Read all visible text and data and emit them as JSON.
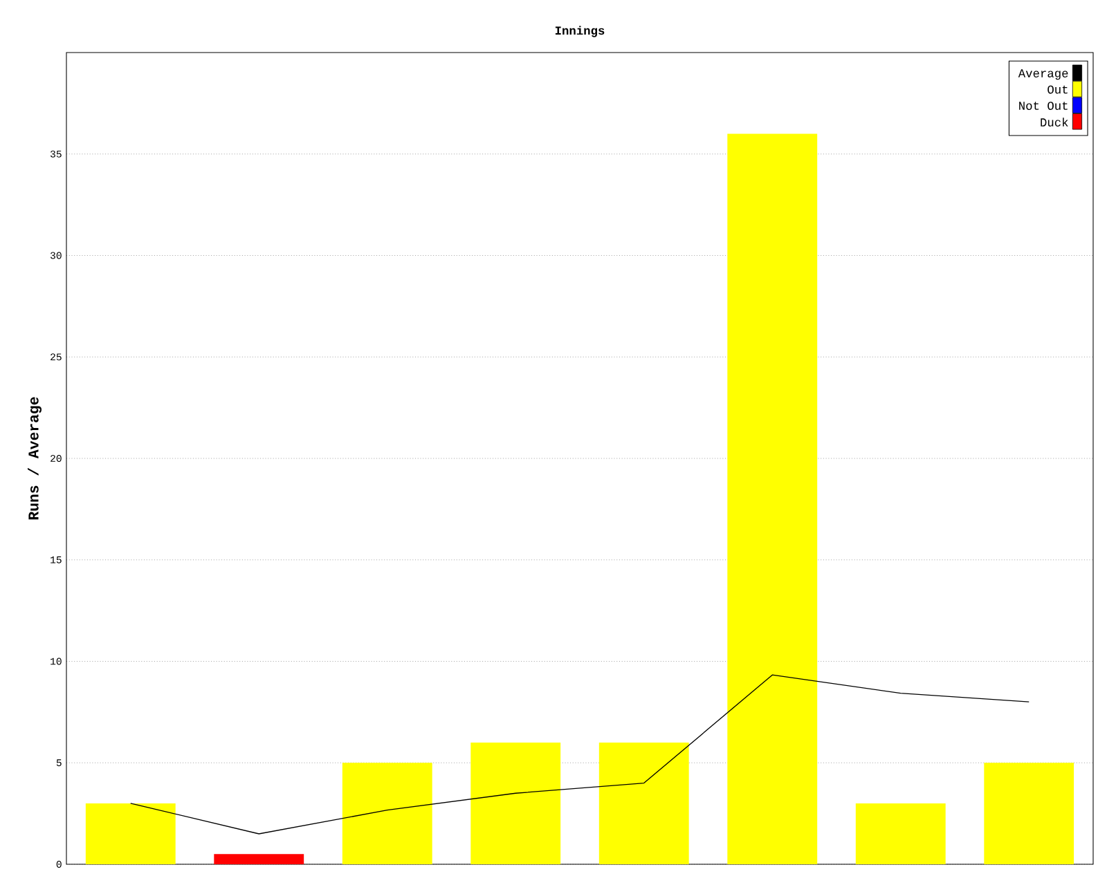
{
  "chart_data": {
    "type": "bar",
    "title": "Innings",
    "ylabel": "Runs / Average",
    "categories": [
      null,
      null,
      null,
      null,
      null,
      null,
      null,
      null
    ],
    "series": [
      {
        "name": "Average",
        "type": "line",
        "color": "#000000",
        "values": [
          3,
          1.5,
          2.67,
          3.5,
          4,
          9.33,
          8.43,
          8
        ]
      },
      {
        "name": "Out",
        "color": "#ffff00",
        "values": [
          3,
          null,
          5,
          6,
          6,
          36,
          3,
          5
        ]
      },
      {
        "name": "Not Out",
        "color": "#0000ff",
        "values": [
          null,
          null,
          null,
          null,
          null,
          null,
          null,
          null
        ]
      },
      {
        "name": "Duck",
        "color": "#ff0000",
        "values": [
          null,
          0.5,
          null,
          null,
          null,
          null,
          null,
          null
        ]
      }
    ],
    "ylim": [
      0,
      40
    ],
    "yticks": [
      0,
      5,
      10,
      15,
      20,
      25,
      30,
      35
    ],
    "grid": "y",
    "legend": "top right",
    "marker": "none"
  }
}
